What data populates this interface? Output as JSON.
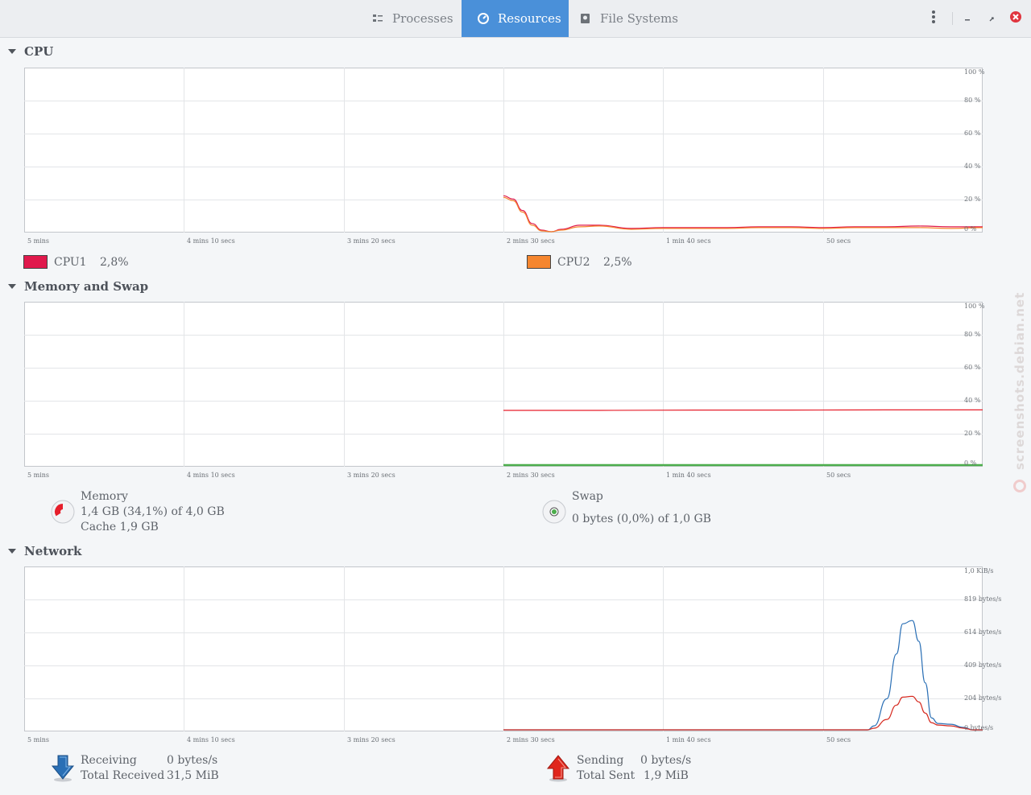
{
  "header": {
    "tabs": [
      {
        "label": "Processes",
        "icon": "process-list-icon",
        "active": false
      },
      {
        "label": "Resources",
        "icon": "gauge-icon",
        "active": true
      },
      {
        "label": "File Systems",
        "icon": "disk-icon",
        "active": false
      }
    ],
    "accent_color": "#4a90d9",
    "close_color": "#e0353f"
  },
  "x_labels": [
    "5 mins",
    "4 mins 10 secs",
    "3 mins 20 secs",
    "2 mins 30 secs",
    "1 min 40 secs",
    "50 secs"
  ],
  "sections": {
    "cpu": {
      "title": "CPU",
      "y_labels": [
        "100 %",
        "80 %",
        "60 %",
        "40 %",
        "20 %",
        "0 %"
      ],
      "legend": [
        {
          "name": "CPU1",
          "value": "2,8%",
          "color": "#e0194c"
        },
        {
          "name": "CPU2",
          "value": "2,5%",
          "color": "#f5862f"
        }
      ]
    },
    "memory": {
      "title": "Memory and Swap",
      "y_labels": [
        "100 %",
        "80 %",
        "60 %",
        "40 %",
        "20 %",
        "0 %"
      ],
      "memory_label": "Memory",
      "memory_value": "1,4 GB (34,1%) of 4,0 GB",
      "cache_value": "Cache 1,9 GB",
      "memory_percent": 34.1,
      "memory_color": "#e61e2a",
      "swap_label": "Swap",
      "swap_value": "0 bytes (0,0%) of 1,0 GB",
      "swap_percent": 0.0,
      "swap_color": "#4cae4c"
    },
    "network": {
      "title": "Network",
      "y_labels": [
        "1,0 KiB/s",
        "819 bytes/s",
        "614 bytes/s",
        "409 bytes/s",
        "204 bytes/s",
        "0 bytes/s"
      ],
      "receiving_label": "Receiving",
      "receiving_value": "0 bytes/s",
      "total_received_label": "Total Received",
      "total_received_value": "31,5 MiB",
      "sending_label": "Sending",
      "sending_value": "0 bytes/s",
      "total_sent_label": "Total Sent",
      "total_sent_value": "1,9 MiB",
      "receiving_color": "#2a6fb5",
      "sending_color": "#d6291f"
    }
  },
  "watermark": "screenshots.debian.net",
  "chart_data": [
    {
      "type": "line",
      "x_unit": "seconds ago",
      "xlim": [
        300,
        0
      ],
      "ylim": [
        0,
        100
      ],
      "series": [
        {
          "name": "CPU1",
          "color": "#e0194c",
          "x": [
            150,
            147,
            144,
            141,
            138,
            135,
            132,
            126,
            120,
            110,
            100,
            90,
            80,
            70,
            60,
            50,
            40,
            30,
            20,
            10,
            0
          ],
          "y": [
            22,
            20,
            13,
            5,
            1,
            0,
            1.5,
            4,
            4,
            2,
            2.5,
            2.5,
            2.5,
            3,
            3,
            2.5,
            3,
            3,
            3.5,
            3,
            3
          ]
        },
        {
          "name": "CPU2",
          "color": "#f5862f",
          "x": [
            150,
            147,
            144,
            141,
            138,
            135,
            132,
            126,
            120,
            110,
            100,
            90,
            80,
            70,
            60,
            50,
            40,
            30,
            20,
            10,
            0
          ],
          "y": [
            21,
            19,
            12,
            4,
            0.5,
            0,
            1,
            3,
            3.5,
            1.5,
            2,
            2,
            2,
            2.5,
            2.5,
            2,
            2.5,
            2.5,
            2.5,
            2,
            2.5
          ]
        }
      ]
    },
    {
      "type": "line",
      "x_unit": "seconds ago",
      "xlim": [
        300,
        0
      ],
      "ylim": [
        0,
        100
      ],
      "series": [
        {
          "name": "Memory",
          "color": "#e61e2a",
          "x": [
            150,
            120,
            90,
            60,
            30,
            0
          ],
          "y": [
            34,
            34,
            34.2,
            34.2,
            34.3,
            34.3
          ]
        },
        {
          "name": "Swap",
          "color": "#4cae4c",
          "x": [
            150,
            120,
            90,
            60,
            30,
            0
          ],
          "y": [
            0.5,
            0.5,
            0.5,
            0.5,
            0.5,
            0.5
          ]
        }
      ]
    },
    {
      "type": "line",
      "x_unit": "seconds ago",
      "xlim": [
        300,
        0
      ],
      "ylim": [
        0,
        1024
      ],
      "series": [
        {
          "name": "Receiving",
          "color": "#2a6fb5",
          "x": [
            150,
            120,
            90,
            60,
            36,
            34,
            30,
            27,
            25,
            22,
            20,
            18,
            16,
            14,
            10,
            6,
            3,
            0
          ],
          "y": [
            5,
            5,
            5,
            5,
            5,
            30,
            200,
            480,
            670,
            690,
            560,
            300,
            80,
            45,
            40,
            20,
            5,
            5
          ]
        },
        {
          "name": "Sending",
          "color": "#d6291f",
          "x": [
            150,
            120,
            90,
            60,
            36,
            34,
            30,
            27,
            25,
            22,
            20,
            18,
            16,
            14,
            10,
            6,
            3,
            0
          ],
          "y": [
            5,
            5,
            5,
            5,
            5,
            15,
            70,
            160,
            210,
            215,
            180,
            110,
            50,
            35,
            30,
            15,
            5,
            5
          ]
        }
      ]
    }
  ]
}
